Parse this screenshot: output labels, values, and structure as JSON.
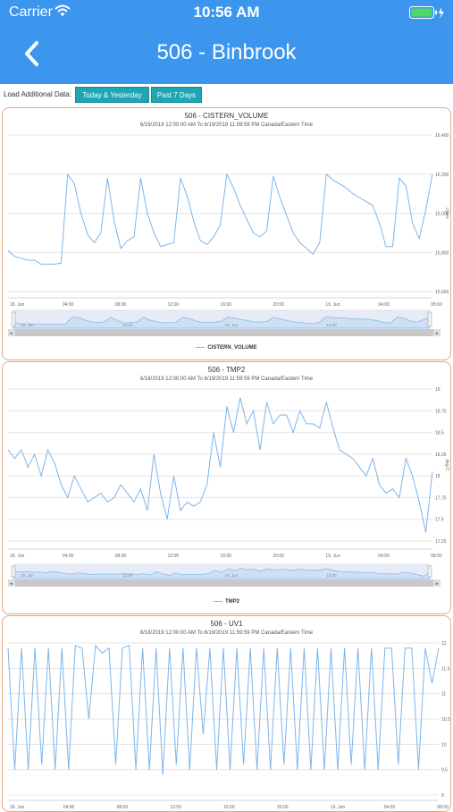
{
  "status_bar": {
    "carrier": "Carrier",
    "time": "10:56 AM"
  },
  "nav": {
    "title": "506 - Binbrook"
  },
  "toolbar": {
    "label": "Load Additional Data:",
    "today_yesterday": "Today & Yesterday",
    "past_7_days": "Past 7 Days"
  },
  "colors": {
    "header": "#3c96ee",
    "button": "#1fa6b3",
    "series": "#7cb5ec",
    "card_border": "#e8a87c"
  },
  "chart_data": [
    {
      "type": "line",
      "title": "506 - CISTERN_VOLUME",
      "subtitle": "6/18/2019 12:00:00 AM To 6/19/2019 11:59:59 PM Canada/Eastern Time",
      "ylabel": "Liters",
      "ylim": [
        15600,
        16400
      ],
      "y_ticks": [
        "16,400",
        "16,200",
        "16,000",
        "15,800",
        "15,600"
      ],
      "x_ticks": [
        "18. Jun",
        "04:00",
        "08:00",
        "12:00",
        "16:00",
        "20:00",
        "19. Jun",
        "04:00",
        "08:00"
      ],
      "navigator_ticks": [
        "18. Jun",
        "12:00",
        "19. Jun",
        "12:00"
      ],
      "legend": "CISTERN_VOLUME",
      "points": [
        [
          0,
          15810
        ],
        [
          1,
          15780
        ],
        [
          2,
          15770
        ],
        [
          3,
          15760
        ],
        [
          4,
          15760
        ],
        [
          5,
          15740
        ],
        [
          6,
          15740
        ],
        [
          7,
          15740
        ],
        [
          8,
          15745
        ],
        [
          9,
          16200
        ],
        [
          10,
          16150
        ],
        [
          11,
          16000
        ],
        [
          12,
          15890
        ],
        [
          13,
          15850
        ],
        [
          14,
          15900
        ],
        [
          15,
          16180
        ],
        [
          16,
          15960
        ],
        [
          17,
          15820
        ],
        [
          18,
          15860
        ],
        [
          19,
          15880
        ],
        [
          20,
          16180
        ],
        [
          21,
          16000
        ],
        [
          22,
          15900
        ],
        [
          23,
          15830
        ],
        [
          24,
          15840
        ],
        [
          25,
          15850
        ],
        [
          26,
          16180
        ],
        [
          27,
          16090
        ],
        [
          28,
          15960
        ],
        [
          29,
          15860
        ],
        [
          30,
          15840
        ],
        [
          31,
          15880
        ],
        [
          32,
          15940
        ],
        [
          33,
          16200
        ],
        [
          34,
          16130
        ],
        [
          35,
          16040
        ],
        [
          36,
          15970
        ],
        [
          37,
          15900
        ],
        [
          38,
          15880
        ],
        [
          39,
          15910
        ],
        [
          40,
          16190
        ],
        [
          41,
          16080
        ],
        [
          42,
          15990
        ],
        [
          43,
          15900
        ],
        [
          44,
          15850
        ],
        [
          45,
          15820
        ],
        [
          46,
          15790
        ],
        [
          47,
          15850
        ],
        [
          48,
          16200
        ],
        [
          49,
          16170
        ],
        [
          50,
          16150
        ],
        [
          51,
          16130
        ],
        [
          52,
          16100
        ],
        [
          53,
          16080
        ],
        [
          54,
          16060
        ],
        [
          55,
          16040
        ],
        [
          56,
          15950
        ],
        [
          57,
          15830
        ],
        [
          58,
          15830
        ],
        [
          59,
          16180
        ],
        [
          60,
          16140
        ],
        [
          61,
          15950
        ],
        [
          62,
          15870
        ],
        [
          63,
          16020
        ],
        [
          64,
          16200
        ]
      ]
    },
    {
      "type": "line",
      "title": "506 - TMP2",
      "subtitle": "6/18/2019 12:00:00 AM To 6/19/2019 11:59:59 PM Canada/Eastern Time",
      "ylabel": "deg C",
      "ylim": [
        17.25,
        19
      ],
      "y_ticks": [
        "19",
        "18.75",
        "18.5",
        "18.25",
        "18",
        "17.75",
        "17.5",
        "17.25"
      ],
      "x_ticks": [
        "18. Jun",
        "04:00",
        "08:00",
        "12:00",
        "16:00",
        "20:00",
        "19. Jun",
        "04:00",
        "08:00"
      ],
      "navigator_ticks": [
        "18. Jun",
        "12:00",
        "19. Jun",
        "12:00"
      ],
      "legend": "TMP2",
      "points": [
        [
          0,
          18.3
        ],
        [
          1,
          18.2
        ],
        [
          2,
          18.3
        ],
        [
          3,
          18.1
        ],
        [
          4,
          18.25
        ],
        [
          5,
          18.0
        ],
        [
          6,
          18.3
        ],
        [
          7,
          18.15
        ],
        [
          8,
          17.9
        ],
        [
          9,
          17.75
        ],
        [
          10,
          18.0
        ],
        [
          11,
          17.85
        ],
        [
          12,
          17.7
        ],
        [
          13,
          17.75
        ],
        [
          14,
          17.8
        ],
        [
          15,
          17.7
        ],
        [
          16,
          17.75
        ],
        [
          17,
          17.9
        ],
        [
          18,
          17.8
        ],
        [
          19,
          17.7
        ],
        [
          20,
          17.85
        ],
        [
          21,
          17.6
        ],
        [
          22,
          18.25
        ],
        [
          23,
          17.8
        ],
        [
          24,
          17.5
        ],
        [
          25,
          18.0
        ],
        [
          26,
          17.6
        ],
        [
          27,
          17.7
        ],
        [
          28,
          17.65
        ],
        [
          29,
          17.7
        ],
        [
          30,
          17.9
        ],
        [
          31,
          18.5
        ],
        [
          32,
          18.1
        ],
        [
          33,
          18.8
        ],
        [
          34,
          18.5
        ],
        [
          35,
          18.9
        ],
        [
          36,
          18.6
        ],
        [
          37,
          18.75
        ],
        [
          38,
          18.3
        ],
        [
          39,
          18.85
        ],
        [
          40,
          18.6
        ],
        [
          41,
          18.7
        ],
        [
          42,
          18.7
        ],
        [
          43,
          18.5
        ],
        [
          44,
          18.75
        ],
        [
          45,
          18.6
        ],
        [
          46,
          18.6
        ],
        [
          47,
          18.55
        ],
        [
          48,
          18.85
        ],
        [
          49,
          18.55
        ],
        [
          50,
          18.3
        ],
        [
          51,
          18.25
        ],
        [
          52,
          18.2
        ],
        [
          53,
          18.1
        ],
        [
          54,
          18.0
        ],
        [
          55,
          18.2
        ],
        [
          56,
          17.9
        ],
        [
          57,
          17.8
        ],
        [
          58,
          17.85
        ],
        [
          59,
          17.75
        ],
        [
          60,
          18.2
        ],
        [
          61,
          18.0
        ],
        [
          62,
          17.7
        ],
        [
          63,
          17.35
        ],
        [
          64,
          18.05
        ]
      ]
    },
    {
      "type": "line",
      "title": "506 - UV1",
      "subtitle": "6/18/2019 12:00:00 AM To 6/19/2019 11:59:59 PM Canada/Eastern Time",
      "ylim": [
        9,
        12
      ],
      "y_ticks": [
        "12",
        "11.5",
        "11",
        "10.5",
        "10",
        "9.5",
        "9"
      ],
      "x_ticks": [
        "18. Jun",
        "04:00",
        "08:00",
        "12:00",
        "16:00",
        "20:00",
        "19. Jun",
        "04:00",
        "08:00"
      ],
      "points": [
        [
          0,
          11.9
        ],
        [
          1,
          9.5
        ],
        [
          2,
          11.9
        ],
        [
          3,
          9.5
        ],
        [
          4,
          11.9
        ],
        [
          5,
          9.6
        ],
        [
          6,
          11.9
        ],
        [
          7,
          9.5
        ],
        [
          8,
          11.9
        ],
        [
          9,
          9.5
        ],
        [
          10,
          11.95
        ],
        [
          11,
          11.9
        ],
        [
          12,
          10.5
        ],
        [
          13,
          11.95
        ],
        [
          14,
          11.8
        ],
        [
          15,
          11.9
        ],
        [
          16,
          9.6
        ],
        [
          17,
          11.9
        ],
        [
          18,
          11.95
        ],
        [
          19,
          9.5
        ],
        [
          20,
          11.9
        ],
        [
          21,
          9.5
        ],
        [
          22,
          11.9
        ],
        [
          23,
          9.4
        ],
        [
          24,
          11.9
        ],
        [
          25,
          9.6
        ],
        [
          26,
          11.9
        ],
        [
          27,
          9.5
        ],
        [
          28,
          11.9
        ],
        [
          29,
          10.2
        ],
        [
          30,
          11.9
        ],
        [
          31,
          9.5
        ],
        [
          32,
          11.9
        ],
        [
          33,
          9.5
        ],
        [
          34,
          11.9
        ],
        [
          35,
          9.6
        ],
        [
          36,
          11.9
        ],
        [
          37,
          9.5
        ],
        [
          38,
          11.9
        ],
        [
          39,
          9.5
        ],
        [
          40,
          11.9
        ],
        [
          41,
          9.6
        ],
        [
          42,
          11.9
        ],
        [
          43,
          9.5
        ],
        [
          44,
          11.9
        ],
        [
          45,
          9.5
        ],
        [
          46,
          11.9
        ],
        [
          47,
          9.5
        ],
        [
          48,
          11.9
        ],
        [
          49,
          9.5
        ],
        [
          50,
          11.9
        ],
        [
          51,
          9.6
        ],
        [
          52,
          11.9
        ],
        [
          53,
          9.5
        ],
        [
          54,
          11.9
        ],
        [
          55,
          9.5
        ],
        [
          56,
          11.9
        ],
        [
          57,
          11.9
        ],
        [
          58,
          9.6
        ],
        [
          59,
          11.9
        ],
        [
          60,
          11.9
        ],
        [
          61,
          9.5
        ],
        [
          62,
          11.9
        ],
        [
          63,
          11.2
        ],
        [
          64,
          11.9
        ]
      ]
    }
  ]
}
